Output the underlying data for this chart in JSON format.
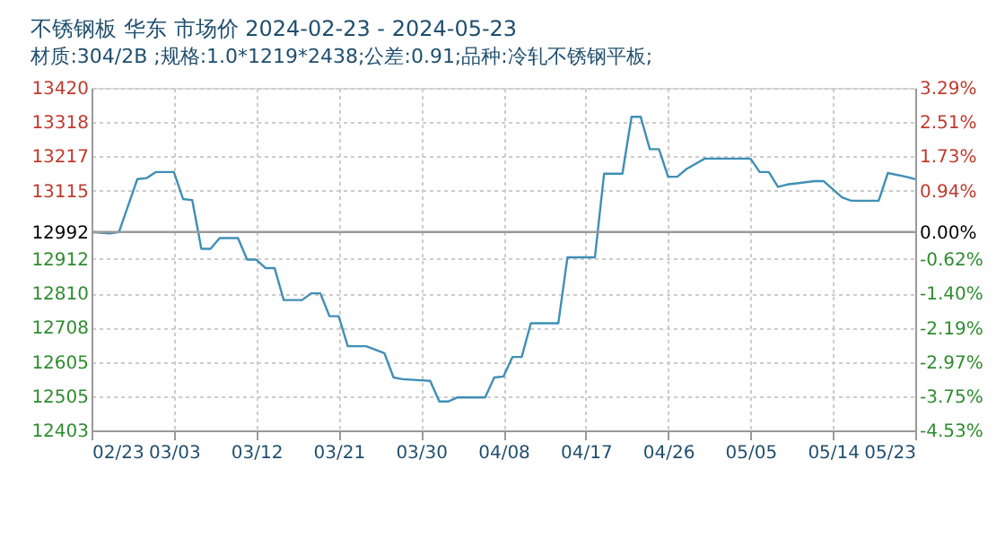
{
  "chart_data": {
    "type": "line",
    "title": "不锈钢板 华东 市场价 2024-02-23 - 2024-05-23",
    "subtitle": "材质:304/2B ;规格:1.0*1219*2438;公差:0.91;品种:冷轧不锈钢平板;",
    "x": [
      "2024-02-23",
      "2024-02-25",
      "2024-02-26",
      "2024-02-28",
      "2024-02-29",
      "2024-03-01",
      "2024-03-03",
      "2024-03-04",
      "2024-03-05",
      "2024-03-06",
      "2024-03-07",
      "2024-03-08",
      "2024-03-10",
      "2024-03-11",
      "2024-03-12",
      "2024-03-13",
      "2024-03-14",
      "2024-03-15",
      "2024-03-17",
      "2024-03-18",
      "2024-03-19",
      "2024-03-20",
      "2024-03-21",
      "2024-03-22",
      "2024-03-24",
      "2024-03-26",
      "2024-03-27",
      "2024-03-28",
      "2024-03-31",
      "2024-04-01",
      "2024-04-02",
      "2024-04-03",
      "2024-04-06",
      "2024-04-07",
      "2024-04-08",
      "2024-04-09",
      "2024-04-10",
      "2024-04-11",
      "2024-04-14",
      "2024-04-15",
      "2024-04-18",
      "2024-04-19",
      "2024-04-21",
      "2024-04-22",
      "2024-04-23",
      "2024-04-24",
      "2024-04-25",
      "2024-04-26",
      "2024-04-27",
      "2024-04-28",
      "2024-04-30",
      "2024-05-05",
      "2024-05-06",
      "2024-05-07",
      "2024-05-08",
      "2024-05-09",
      "2024-05-12",
      "2024-05-13",
      "2024-05-15",
      "2024-05-16",
      "2024-05-19",
      "2024-05-20",
      "2024-05-22",
      "2024-05-23"
    ],
    "series": [
      {
        "color": "#3f8fb5",
        "values": [
          12992,
          12988,
          12992,
          13149,
          13152,
          13170,
          13170,
          13090,
          13087,
          12942,
          12942,
          12974,
          12974,
          12910,
          12910,
          12885,
          12885,
          12790,
          12790,
          12810,
          12810,
          12742,
          12742,
          12653,
          12653,
          12632,
          12560,
          12555,
          12550,
          12489,
          12489,
          12501,
          12501,
          12560,
          12563,
          12621,
          12621,
          12721,
          12721,
          12917,
          12917,
          13165,
          13165,
          13334,
          13334,
          13238,
          13238,
          13156,
          13156,
          13179,
          13210,
          13210,
          13170,
          13170,
          13126,
          13133,
          13143,
          13143,
          13095,
          13085,
          13085,
          13167,
          13156,
          13149
        ]
      }
    ],
    "xlim": [
      "2024-02-23",
      "2024-05-23"
    ],
    "xticks": [
      {
        "value": "2024-02-23",
        "label": "02/23"
      },
      {
        "value": "2024-03-03",
        "label": "03/03"
      },
      {
        "value": "2024-03-12",
        "label": "03/12"
      },
      {
        "value": "2024-03-21",
        "label": "03/21"
      },
      {
        "value": "2024-03-30",
        "label": "03/30"
      },
      {
        "value": "2024-04-08",
        "label": "04/08"
      },
      {
        "value": "2024-04-17",
        "label": "04/17"
      },
      {
        "value": "2024-04-26",
        "label": "04/26"
      },
      {
        "value": "2024-05-05",
        "label": "05/05"
      },
      {
        "value": "2024-05-14",
        "label": "05/14"
      },
      {
        "value": "2024-05-23",
        "label": "05/23"
      }
    ],
    "ylim": [
      12403,
      13420
    ],
    "yticks": [
      12403,
      12505,
      12605,
      12708,
      12810,
      12912,
      12992,
      13115,
      13217,
      13318,
      13420
    ],
    "y2lim": [
      -4.53,
      3.29
    ],
    "y2ticks": [
      {
        "value": -4.53,
        "label": "-4.53%"
      },
      {
        "value": -3.75,
        "label": "-3.75%"
      },
      {
        "value": -2.97,
        "label": "-2.97%"
      },
      {
        "value": -2.19,
        "label": "-2.19%"
      },
      {
        "value": -1.4,
        "label": "-1.40%"
      },
      {
        "value": -0.62,
        "label": "-0.62%"
      },
      {
        "value": 0,
        "label": "0.00%"
      },
      {
        "value": 0.94,
        "label": "0.94%"
      },
      {
        "value": 1.73,
        "label": "1.73%"
      },
      {
        "value": 2.51,
        "label": "2.51%"
      },
      {
        "value": 3.29,
        "label": "3.29%"
      }
    ],
    "ref_lines": [
      {
        "axis": "y",
        "value": 12992,
        "color": "#999999",
        "line_style": "solid"
      }
    ],
    "grid": true,
    "marker": "none",
    "line_style": "solid"
  }
}
